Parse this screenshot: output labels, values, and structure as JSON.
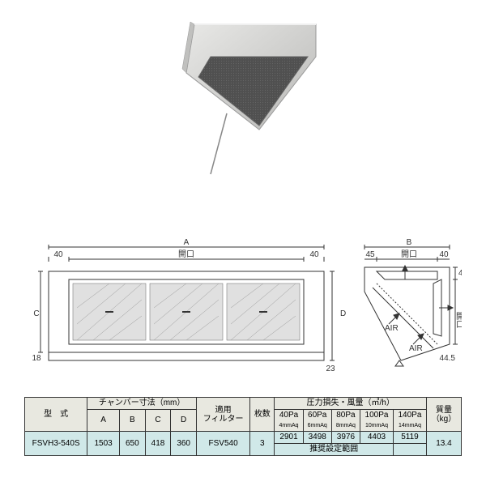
{
  "product_image": {
    "body_color": "#d8d8d6",
    "body_shadow": "#b0b0ae",
    "filter_color": "#505050",
    "filter_pattern": "#707070",
    "cable_color": "#888888"
  },
  "diagram": {
    "line_color": "#333333",
    "hatch_color": "#888888",
    "bg": "#ffffff",
    "labels": {
      "A": "A",
      "B": "B",
      "C": "C",
      "D": "D",
      "opening": "開口",
      "air": "AIR",
      "v40l": "40",
      "v40r": "40",
      "v45": "45",
      "v18": "18",
      "v23": "23",
      "v44_5": "44.5"
    }
  },
  "table": {
    "headers": {
      "model": "型　式",
      "chamber_dims": "チャンバー寸法（mm）",
      "filter": "適用\nフィルター",
      "sheets": "枚数",
      "pressure_flow": "圧力損失・風量（㎥/h）",
      "mass": "質量\n（kg）",
      "rec_range": "推奨設定範囲"
    },
    "dim_cols": [
      "A",
      "B",
      "C",
      "D"
    ],
    "pressure_headers": [
      {
        "pa": "40Pa",
        "mmaq": "4mmAq"
      },
      {
        "pa": "60Pa",
        "mmaq": "6mmAq"
      },
      {
        "pa": "80Pa",
        "mmaq": "8mmAq"
      },
      {
        "pa": "100Pa",
        "mmaq": "10mmAq"
      },
      {
        "pa": "140Pa",
        "mmaq": "14mmAq"
      }
    ],
    "row": {
      "model": "FSVH3-540S",
      "dims": [
        "1503",
        "650",
        "418",
        "360"
      ],
      "filter": "FSV540",
      "sheets": "3",
      "flows": [
        "2901",
        "3498",
        "3976",
        "4403",
        "5119"
      ],
      "mass": "13.4"
    }
  }
}
